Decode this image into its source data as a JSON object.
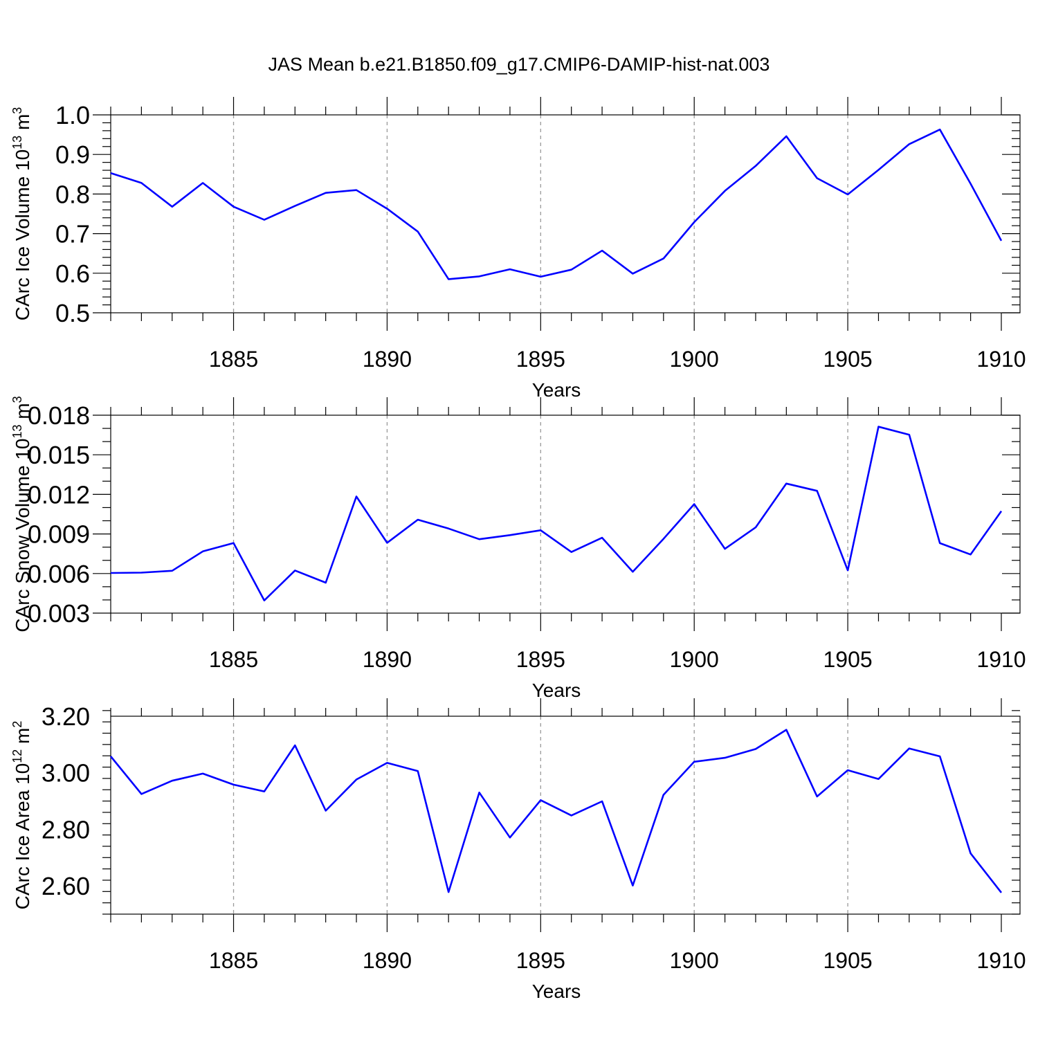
{
  "title": "JAS Mean b.e21.B1850.f09_g17.CMIP6-DAMIP-hist-nat.003",
  "chart_data": [
    {
      "type": "line",
      "ylabel_main": "CArc Ice Volume 10",
      "ylabel_sup": "13",
      "ylabel_unit": " m",
      "ylabel_unit_sup": "3",
      "xlabel": "Years",
      "xlim": [
        1881,
        1910
      ],
      "ylim": [
        0.5,
        1.0
      ],
      "yticks": [
        0.5,
        0.6,
        0.7,
        0.8,
        0.9,
        1.0
      ],
      "ytick_labels": [
        "0.5",
        "0.6",
        "0.7",
        "0.8",
        "0.9",
        "1.0"
      ],
      "xticks": [
        1885,
        1890,
        1895,
        1900,
        1905,
        1910
      ],
      "xtick_labels": [
        "1885",
        "1890",
        "1895",
        "1900",
        "1905",
        "1910"
      ],
      "grid": "vertical dashed at major x ticks",
      "color": "#0000ff",
      "x": [
        1881,
        1882,
        1883,
        1884,
        1885,
        1886,
        1887,
        1888,
        1889,
        1890,
        1891,
        1892,
        1893,
        1894,
        1895,
        1896,
        1897,
        1898,
        1899,
        1900,
        1901,
        1902,
        1903,
        1904,
        1905,
        1906,
        1907,
        1908,
        1909,
        1910
      ],
      "values": [
        0.853,
        0.828,
        0.768,
        0.828,
        0.768,
        0.735,
        0.77,
        0.803,
        0.81,
        0.763,
        0.705,
        0.585,
        0.592,
        0.61,
        0.591,
        0.609,
        0.657,
        0.599,
        0.637,
        0.729,
        0.808,
        0.871,
        0.946,
        0.84,
        0.799,
        0.861,
        0.926,
        0.963,
        0.826,
        0.682
      ]
    },
    {
      "type": "line",
      "ylabel_main": "CArc Snow Volume 10",
      "ylabel_sup": "13",
      "ylabel_unit": " m",
      "ylabel_unit_sup": "3",
      "xlabel": "Years",
      "xlim": [
        1881,
        1910
      ],
      "ylim": [
        0.003,
        0.018
      ],
      "yticks": [
        0.003,
        0.006,
        0.009,
        0.012,
        0.015,
        0.018
      ],
      "ytick_labels": [
        "0.003",
        "0.006",
        "0.009",
        "0.012",
        "0.015",
        "0.018"
      ],
      "xticks": [
        1885,
        1890,
        1895,
        1900,
        1905,
        1910
      ],
      "xtick_labels": [
        "1885",
        "1890",
        "1895",
        "1900",
        "1905",
        "1910"
      ],
      "grid": "vertical dashed at major x ticks",
      "color": "#0000ff",
      "x": [
        1881,
        1882,
        1883,
        1884,
        1885,
        1886,
        1887,
        1888,
        1889,
        1890,
        1891,
        1892,
        1893,
        1894,
        1895,
        1896,
        1897,
        1898,
        1899,
        1900,
        1901,
        1902,
        1903,
        1904,
        1905,
        1906,
        1907,
        1908,
        1909,
        1910
      ],
      "values": [
        0.00604,
        0.00607,
        0.00621,
        0.00768,
        0.00831,
        0.00396,
        0.00623,
        0.00531,
        0.01184,
        0.00833,
        0.01008,
        0.00941,
        0.0086,
        0.00891,
        0.00928,
        0.00763,
        0.00871,
        0.00613,
        0.00863,
        0.01126,
        0.00787,
        0.0095,
        0.01282,
        0.01227,
        0.00624,
        0.01713,
        0.01652,
        0.0083,
        0.00744,
        0.01073
      ]
    },
    {
      "type": "line",
      "ylabel_main": "CArc Ice Area 10",
      "ylabel_sup": "12",
      "ylabel_unit": " m",
      "ylabel_unit_sup": "2",
      "xlabel": "Years",
      "xlim": [
        1881,
        1910
      ],
      "ylim": [
        2.5,
        3.2
      ],
      "yticks": [
        2.6,
        2.8,
        3.0,
        3.2
      ],
      "ytick_labels": [
        "2.60",
        "2.80",
        "3.00",
        "3.20"
      ],
      "xticks": [
        1885,
        1890,
        1895,
        1900,
        1905,
        1910
      ],
      "xtick_labels": [
        "1885",
        "1890",
        "1895",
        "1900",
        "1905",
        "1910"
      ],
      "grid": "vertical dashed at major x ticks",
      "color": "#0000ff",
      "x": [
        1881,
        1882,
        1883,
        1884,
        1885,
        1886,
        1887,
        1888,
        1889,
        1890,
        1891,
        1892,
        1893,
        1894,
        1895,
        1896,
        1897,
        1898,
        1899,
        1900,
        1901,
        1902,
        1903,
        1904,
        1905,
        1906,
        1907,
        1908,
        1909,
        1910
      ],
      "values": [
        3.058,
        2.925,
        2.972,
        2.997,
        2.958,
        2.934,
        3.097,
        2.866,
        2.976,
        3.035,
        3.006,
        2.578,
        2.93,
        2.771,
        2.903,
        2.849,
        2.899,
        2.601,
        2.922,
        3.039,
        3.053,
        3.084,
        3.152,
        2.916,
        3.009,
        2.978,
        3.086,
        3.058,
        2.715,
        2.576
      ]
    }
  ]
}
